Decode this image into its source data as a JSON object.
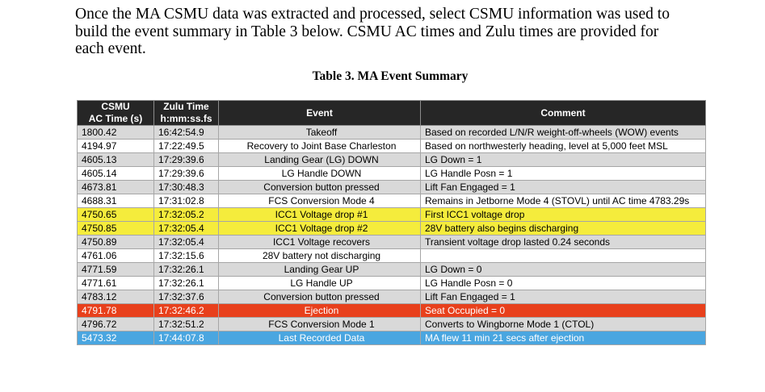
{
  "intro_lines": [
    "Once the MA CSMU data was extracted and processed, select CSMU information was used to",
    "build the event summary in Table 3 below. CSMU AC times and Zulu times are provided for",
    "each event."
  ],
  "caption": "Table 3. MA Event Summary",
  "headers": {
    "ac_time_line1": "CSMU",
    "ac_time_line2": "AC Time (s)",
    "zulu_line1": "Zulu Time",
    "zulu_line2": "h:mm:ss.fs",
    "event": "Event",
    "comment": "Comment"
  },
  "row_colors": {
    "gray": "#d9d9d9",
    "white": "#ffffff",
    "yellow": "#f5ec3c",
    "red": "#e8401c",
    "blue": "#4aa6e0",
    "header": "#262626"
  },
  "rows": [
    {
      "ac": "1800.42",
      "zulu": "16:42:54.9",
      "event": "Takeoff",
      "comment": "Based on recorded L/N/R weight-off-wheels (WOW) events",
      "style": "gray"
    },
    {
      "ac": "4194.97",
      "zulu": "17:22:49.5",
      "event": "Recovery to Joint Base Charleston",
      "comment": "Based on northwesterly heading, level at 5,000 feet MSL",
      "style": "white"
    },
    {
      "ac": "4605.13",
      "zulu": "17:29:39.6",
      "event": "Landing Gear (LG) DOWN",
      "comment": "LG Down = 1",
      "style": "gray"
    },
    {
      "ac": "4605.14",
      "zulu": "17:29:39.6",
      "event": "LG Handle DOWN",
      "comment": "LG Handle Posn = 1",
      "style": "white"
    },
    {
      "ac": "4673.81",
      "zulu": "17:30:48.3",
      "event": "Conversion button pressed",
      "comment": "Lift Fan Engaged = 1",
      "style": "gray"
    },
    {
      "ac": "4688.31",
      "zulu": "17:31:02.8",
      "event": "FCS Conversion Mode 4",
      "comment": "Remains in Jetborne Mode 4 (STOVL) until AC time 4783.29s",
      "style": "white"
    },
    {
      "ac": "4750.65",
      "zulu": "17:32:05.2",
      "event": "ICC1 Voltage drop #1",
      "comment": "First ICC1 voltage drop",
      "style": "yellow"
    },
    {
      "ac": "4750.85",
      "zulu": "17:32:05.4",
      "event": "ICC1 Voltage drop #2",
      "comment": "28V battery also begins discharging",
      "style": "yellow"
    },
    {
      "ac": "4750.89",
      "zulu": "17:32:05.4",
      "event": "ICC1 Voltage recovers",
      "comment": "Transient voltage drop lasted 0.24 seconds",
      "style": "gray"
    },
    {
      "ac": "4761.06",
      "zulu": "17:32:15.6",
      "event": "28V battery not discharging",
      "comment": "",
      "style": "white"
    },
    {
      "ac": "4771.59",
      "zulu": "17:32:26.1",
      "event": "Landing Gear UP",
      "comment": "LG Down = 0",
      "style": "gray"
    },
    {
      "ac": "4771.61",
      "zulu": "17:32:26.1",
      "event": "LG Handle UP",
      "comment": "LG Handle Posn = 0",
      "style": "white"
    },
    {
      "ac": "4783.12",
      "zulu": "17:32:37.6",
      "event": "Conversion button pressed",
      "comment": "Lift Fan Engaged = 1",
      "style": "gray"
    },
    {
      "ac": "4791.78",
      "zulu": "17:32:46.2",
      "event": "Ejection",
      "comment": "Seat Occupied = 0",
      "style": "red"
    },
    {
      "ac": "4796.72",
      "zulu": "17:32:51.2",
      "event": "FCS Conversion Mode 1",
      "comment": "Converts to Wingborne Mode 1 (CTOL)",
      "style": "gray"
    },
    {
      "ac": "5473.32",
      "zulu": "17:44:07.8",
      "event": "Last Recorded Data",
      "comment": "MA flew 11 min 21 secs after ejection",
      "style": "blue"
    }
  ]
}
